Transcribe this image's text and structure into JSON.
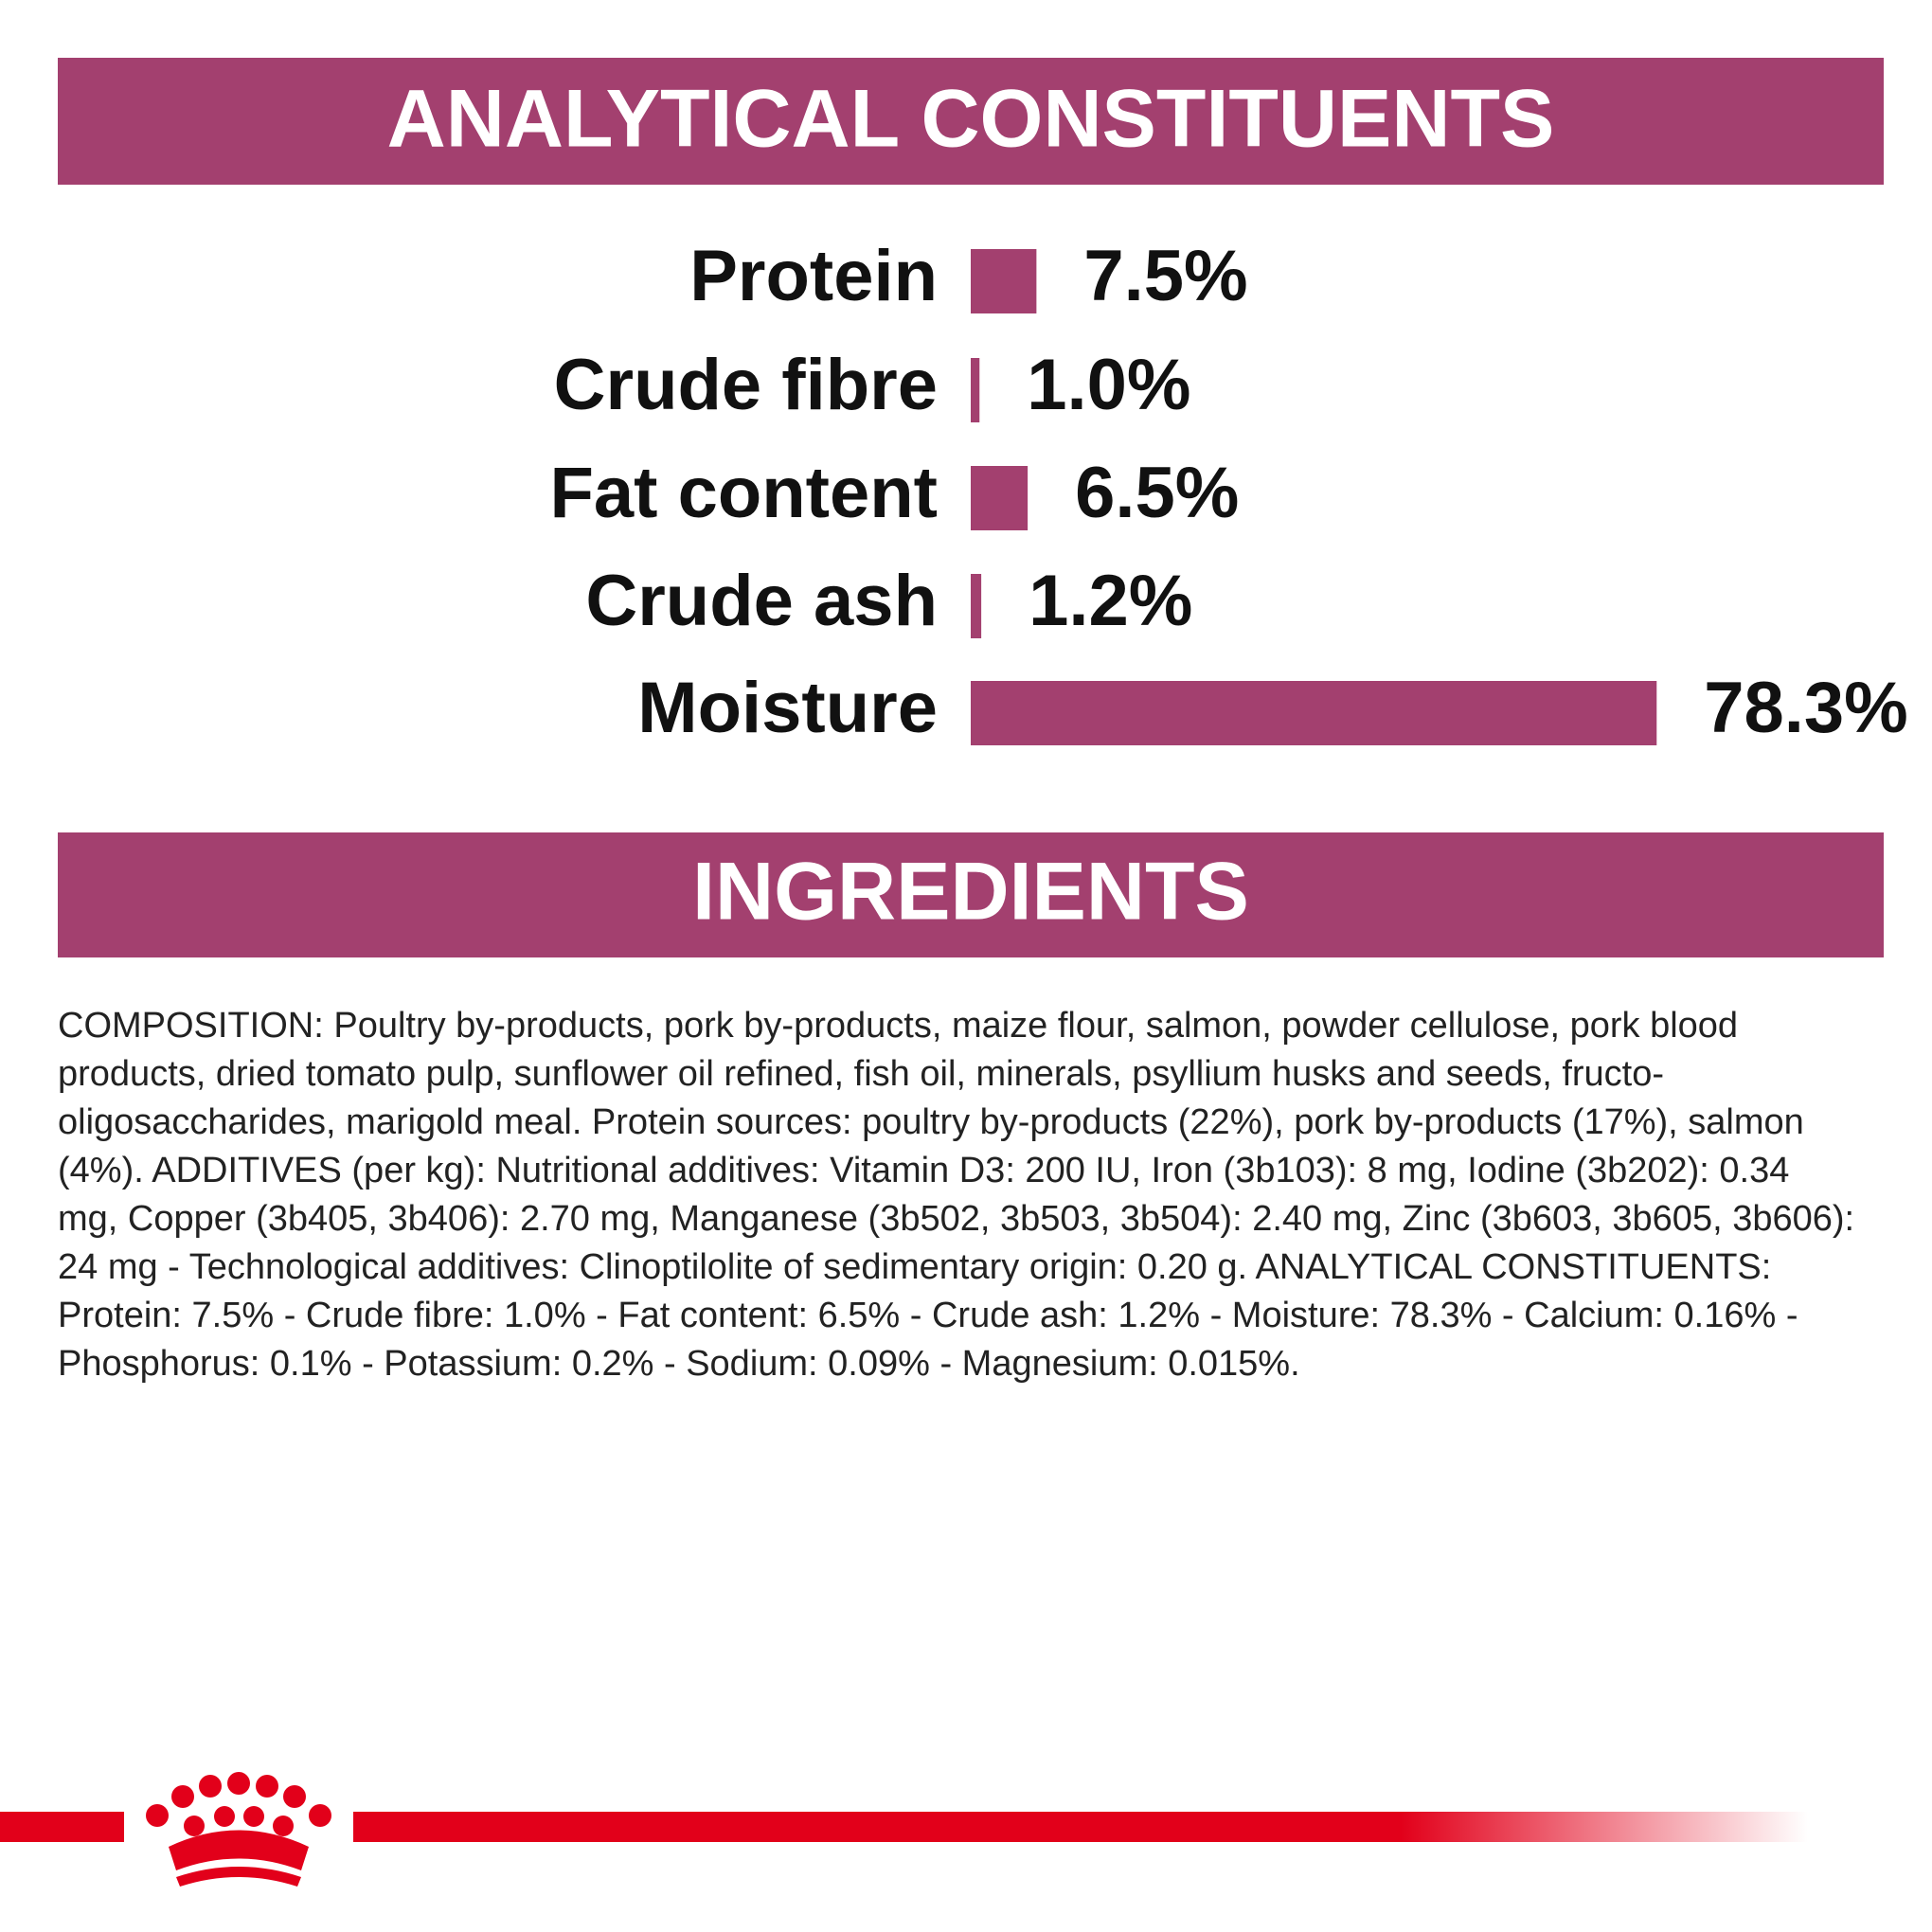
{
  "chart_data": {
    "type": "bar",
    "orientation": "horizontal",
    "title": "ANALYTICAL CONSTITUENTS",
    "categories": [
      "Protein",
      "Crude fibre",
      "Fat content",
      "Crude ash",
      "Moisture"
    ],
    "values": [
      7.5,
      1.0,
      6.5,
      1.2,
      78.3
    ],
    "value_labels": [
      "7.5%",
      "1.0%",
      "6.5%",
      "1.2%",
      "78.3%"
    ],
    "color": "#a3406f"
  },
  "ingredients": {
    "title": "INGREDIENTS",
    "text": "COMPOSITION: Poultry by-products, pork by-products, maize flour, salmon, powder cellulose, pork blood products, dried tomato pulp, sunflower oil refined, fish oil, minerals, psyllium husks and seeds, fructo-oligosaccharides, marigold meal. Protein sources: poultry by-products (22%), pork by-products (17%), salmon (4%). ADDITIVES (per kg): Nutritional additives: Vitamin D3: 200 IU, Iron (3b103): 8 mg, Iodine (3b202): 0.34 mg, Copper (3b405, 3b406): 2.70 mg, Manganese (3b502, 3b503, 3b504): 2.40 mg, Zinc (3b603, 3b605, 3b606): 24 mg - Technological additives: Clinoptilolite of sedimentary origin: 0.20 g. ANALYTICAL CONSTITUENTS: Protein: 7.5% - Crude fibre: 1.0% - Fat content: 6.5% - Crude ash: 1.2% - Moisture: 78.3% - Calcium: 0.16% - Phosphorus: 0.1% - Potassium: 0.2% - Sodium: 0.09% - Magnesium: 0.015%."
  }
}
